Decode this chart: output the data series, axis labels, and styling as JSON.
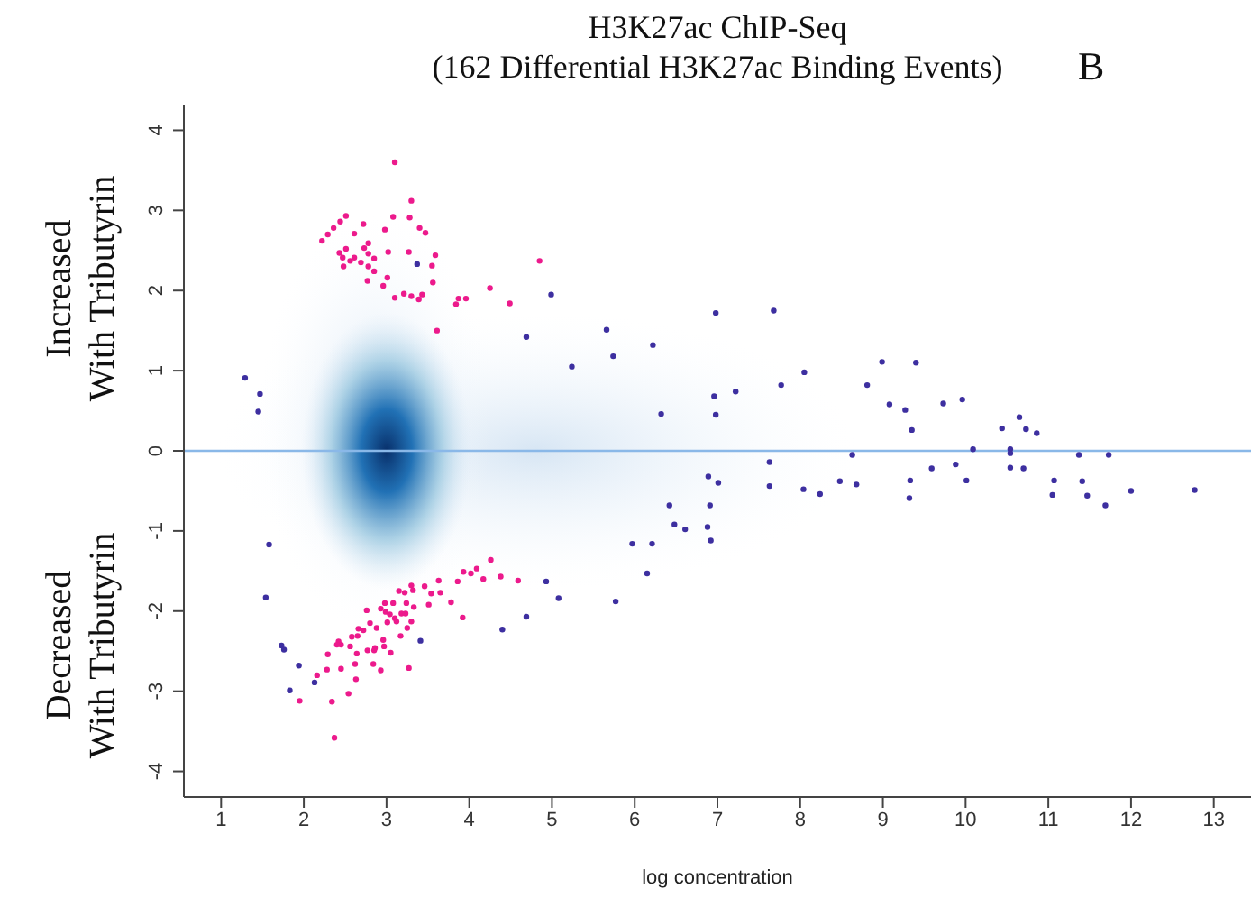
{
  "chart_data": {
    "type": "scatter",
    "title": "H3K27ac ChIP-Seq",
    "subtitle": "(162 Differential H3K27ac Binding Events)",
    "xlabel": "log concentration",
    "annotations": [
      "B",
      "Increased\nWith Tributyrin",
      "Decreased\nWith Tributyrin"
    ],
    "xlim": [
      0.55,
      13.45
    ],
    "xticks": [
      1,
      2,
      3,
      4,
      5,
      6,
      7,
      8,
      9,
      10,
      11,
      12,
      13
    ],
    "ylim": [
      -4.32,
      4.32
    ],
    "yticks": [
      -4,
      -3,
      -2,
      -1,
      0,
      1,
      2,
      3,
      4
    ],
    "grid": false,
    "legend": false,
    "marker": "circle",
    "ref_lines": [
      {
        "axis": "y",
        "value": 0,
        "color": "#8ab8e8"
      }
    ],
    "series": [
      {
        "color": "#3d2fa0",
        "x": [
          3.37,
          4.99,
          4.69,
          5.24,
          5.66,
          5.74,
          6.22,
          6.32,
          6.98,
          6.96,
          6.98,
          1.29,
          1.47,
          1.45,
          7.68,
          7.22,
          7.77,
          8.05,
          8.99,
          9.4,
          8.81,
          9.08,
          9.27,
          9.35,
          9.73,
          9.96,
          10.44,
          10.65,
          10.73,
          10.86,
          10.09,
          10.54,
          10.54,
          8.63,
          11.37,
          11.73,
          9.59,
          9.88,
          10.01,
          10.54,
          10.7,
          11.07,
          11.05,
          11.41,
          11.47,
          11.69,
          12.0,
          12.77,
          7.63,
          7.63,
          8.04,
          8.24,
          8.48,
          8.68,
          9.33,
          9.32,
          6.89,
          7.01,
          6.91,
          6.88,
          6.92,
          6.61,
          1.58,
          1.54,
          1.73,
          1.76,
          1.94,
          1.83,
          2.13,
          3.41,
          4.4,
          4.69,
          4.93,
          5.08,
          5.77,
          5.97,
          6.21,
          6.15,
          6.42,
          6.48
        ],
        "values": [
          2.33,
          1.95,
          1.42,
          1.05,
          1.51,
          1.18,
          1.32,
          0.46,
          1.72,
          0.68,
          0.45,
          0.91,
          0.71,
          0.49,
          1.75,
          0.74,
          0.82,
          0.98,
          1.11,
          1.1,
          0.82,
          0.58,
          0.51,
          0.26,
          0.59,
          0.64,
          0.28,
          0.42,
          0.27,
          0.22,
          0.02,
          0.02,
          -0.03,
          -0.05,
          -0.05,
          -0.05,
          -0.22,
          -0.17,
          -0.37,
          -0.21,
          -0.22,
          -0.37,
          -0.55,
          -0.38,
          -0.56,
          -0.68,
          -0.5,
          -0.49,
          -0.14,
          -0.44,
          -0.48,
          -0.54,
          -0.38,
          -0.42,
          -0.37,
          -0.59,
          -0.32,
          -0.4,
          -0.68,
          -0.95,
          -1.12,
          -0.98,
          -1.17,
          -1.83,
          -2.43,
          -2.48,
          -2.68,
          -2.99,
          -2.89,
          -2.37,
          -2.23,
          -2.07,
          -1.63,
          -1.84,
          -1.88,
          -1.16,
          -1.16,
          -1.53,
          -0.68,
          -0.92
        ]
      },
      {
        "color": "#ec1a8c",
        "x": [
          3.1,
          3.3,
          3.08,
          3.28,
          2.72,
          3.4,
          3.47,
          2.98,
          2.61,
          2.22,
          2.29,
          2.36,
          2.44,
          2.51,
          2.78,
          3.02,
          3.27,
          3.59,
          2.43,
          2.51,
          2.47,
          2.61,
          2.48,
          2.56,
          2.69,
          2.78,
          2.85,
          2.73,
          2.78,
          2.85,
          3.55,
          3.01,
          2.77,
          2.96,
          3.56,
          3.1,
          3.21,
          3.3,
          3.39,
          3.43,
          3.84,
          3.87,
          3.96,
          4.25,
          4.49,
          4.85,
          3.61,
          4.26,
          4.09,
          3.93,
          4.02,
          4.17,
          4.38,
          4.59,
          3.86,
          3.63,
          3.46,
          3.65,
          3.54,
          3.78,
          3.51,
          3.92,
          3.3,
          3.15,
          3.22,
          3.32,
          3.33,
          3.24,
          3.08,
          3.18,
          3.23,
          3.1,
          3.01,
          3.3,
          3.25,
          3.17,
          2.98,
          2.93,
          2.99,
          3.04,
          3.12,
          2.76,
          2.8,
          2.88,
          2.72,
          2.66,
          2.65,
          2.56,
          2.45,
          2.42,
          2.4,
          2.58,
          2.96,
          2.97,
          2.86,
          2.85,
          2.77,
          3.05,
          2.84,
          2.62,
          2.93,
          3.27,
          2.64,
          2.29,
          2.45,
          2.28,
          2.16,
          2.63,
          1.95,
          2.34,
          2.54,
          2.37
        ],
        "values": [
          3.6,
          3.12,
          2.92,
          2.91,
          2.83,
          2.78,
          2.72,
          2.76,
          2.71,
          2.62,
          2.7,
          2.78,
          2.86,
          2.93,
          2.59,
          2.48,
          2.48,
          2.44,
          2.47,
          2.52,
          2.41,
          2.41,
          2.3,
          2.37,
          2.35,
          2.46,
          2.4,
          2.53,
          2.3,
          2.24,
          2.31,
          2.16,
          2.12,
          2.06,
          2.1,
          1.91,
          1.96,
          1.93,
          1.89,
          1.95,
          1.83,
          1.9,
          1.9,
          2.03,
          1.84,
          2.37,
          1.5,
          -1.36,
          -1.47,
          -1.51,
          -1.53,
          -1.6,
          -1.57,
          -1.62,
          -1.63,
          -1.62,
          -1.69,
          -1.77,
          -1.78,
          -1.89,
          -1.92,
          -2.08,
          -1.68,
          -1.75,
          -1.77,
          -1.74,
          -1.95,
          -1.9,
          -1.9,
          -2.03,
          -2.03,
          -2.09,
          -2.14,
          -2.13,
          -2.21,
          -2.31,
          -1.9,
          -1.97,
          -2.01,
          -2.04,
          -2.13,
          -1.99,
          -2.15,
          -2.21,
          -2.24,
          -2.22,
          -2.31,
          -2.44,
          -2.42,
          -2.38,
          -2.42,
          -2.32,
          -2.36,
          -2.44,
          -2.46,
          -2.49,
          -2.49,
          -2.52,
          -2.66,
          -2.66,
          -2.74,
          -2.71,
          -2.53,
          -2.54,
          -2.72,
          -2.73,
          -2.8,
          -2.85,
          -3.12,
          -3.13,
          -3.03,
          -3.58
        ]
      }
    ]
  }
}
